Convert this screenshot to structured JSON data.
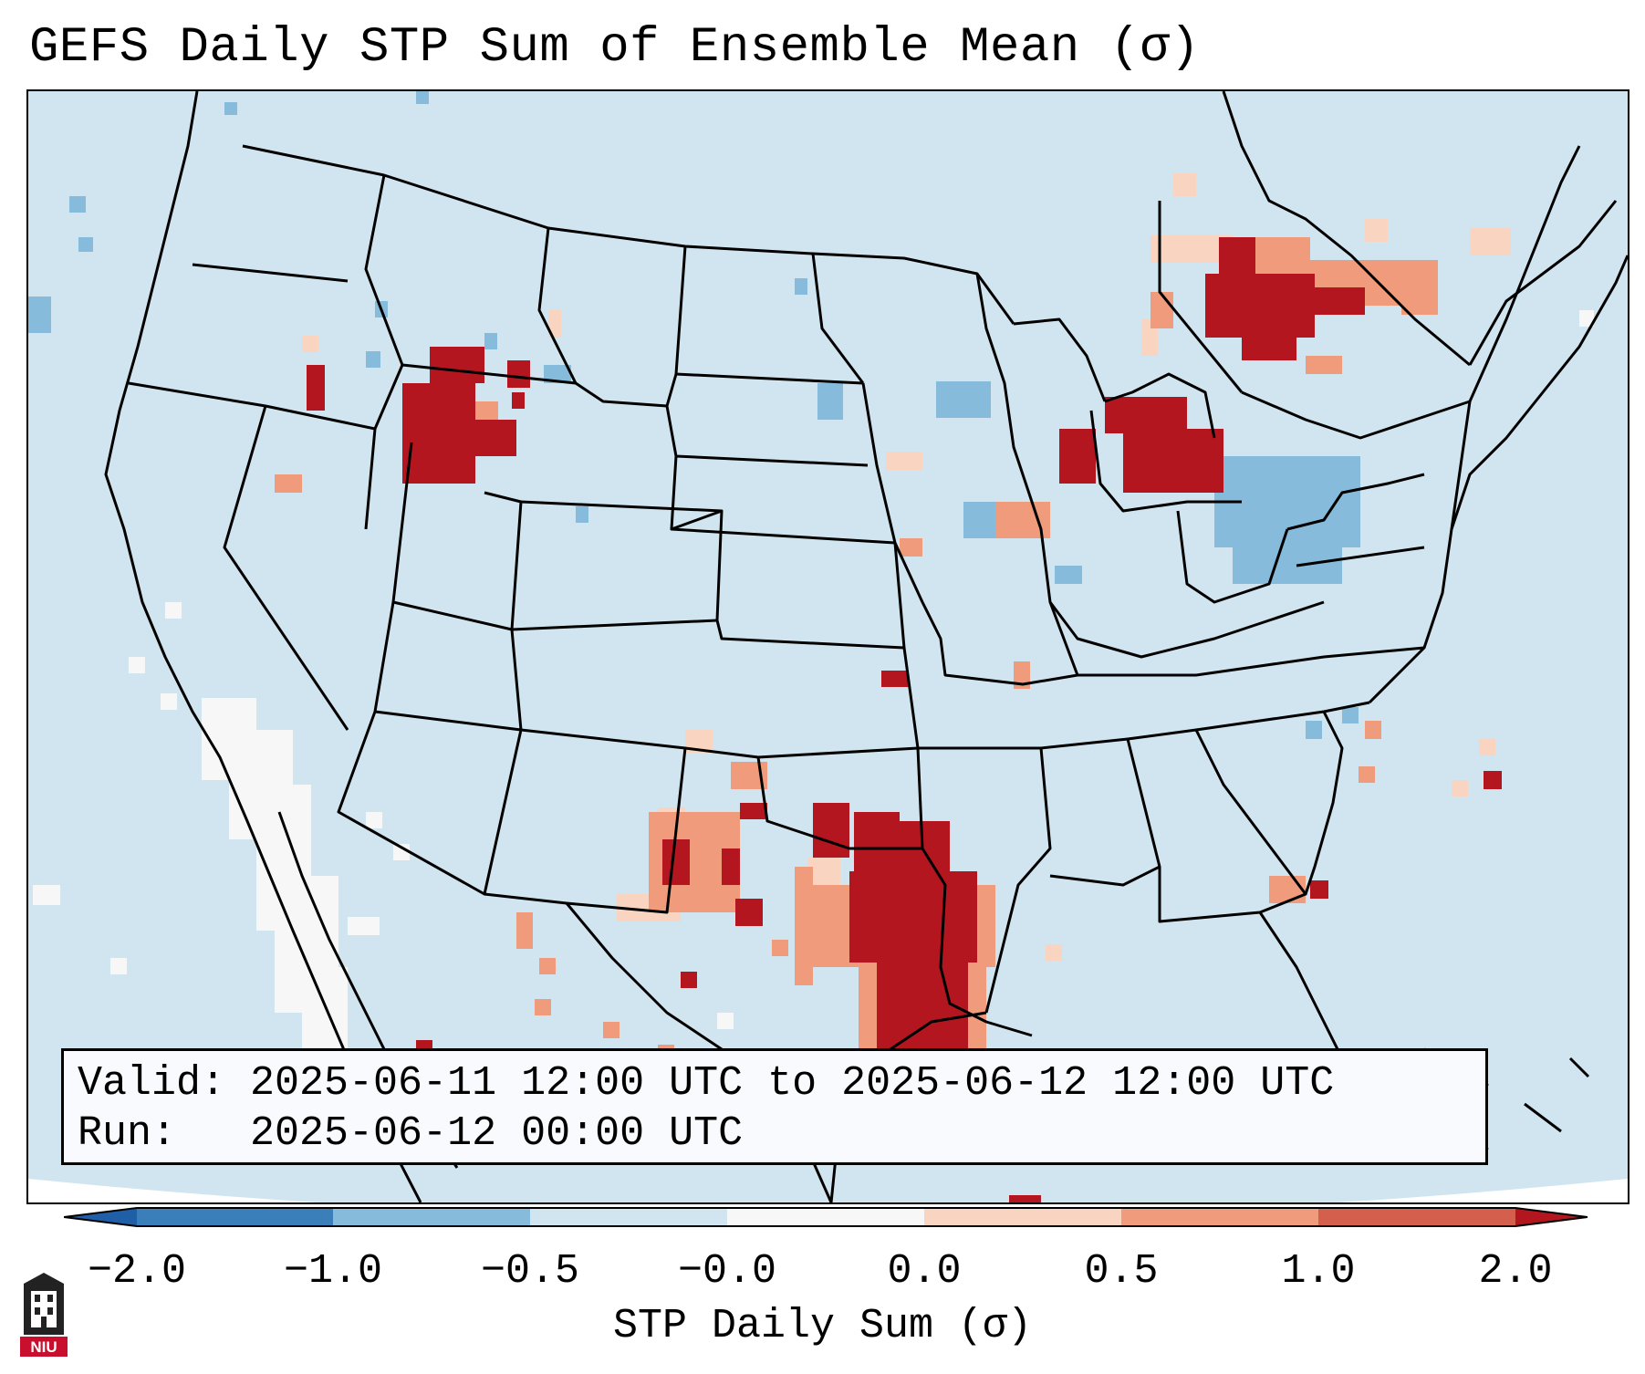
{
  "title": "GEFS Daily STP Sum of Ensemble Mean (σ)",
  "info": {
    "valid_line": "Valid: 2025-06-11 12:00 UTC to 2025-06-12 12:00 UTC",
    "run_line": "Run:   2025-06-12 00:00 UTC"
  },
  "colorbar": {
    "label": "STP Daily Sum (σ)",
    "ticks": [
      "−2.0",
      "−1.0",
      "−0.5",
      "−0.0",
      "0.0",
      "0.5",
      "1.0",
      "2.0"
    ],
    "colors": [
      "#3a7eba",
      "#86bbdb",
      "#d1e5f0",
      "#f7f7f7",
      "#f9d4c0",
      "#ef9b7c",
      "#d55f4d",
      "#b3161f"
    ]
  },
  "map_background_color": "#d1e5f0",
  "logo": {
    "text": "NIU",
    "color": "#c8102e"
  }
}
